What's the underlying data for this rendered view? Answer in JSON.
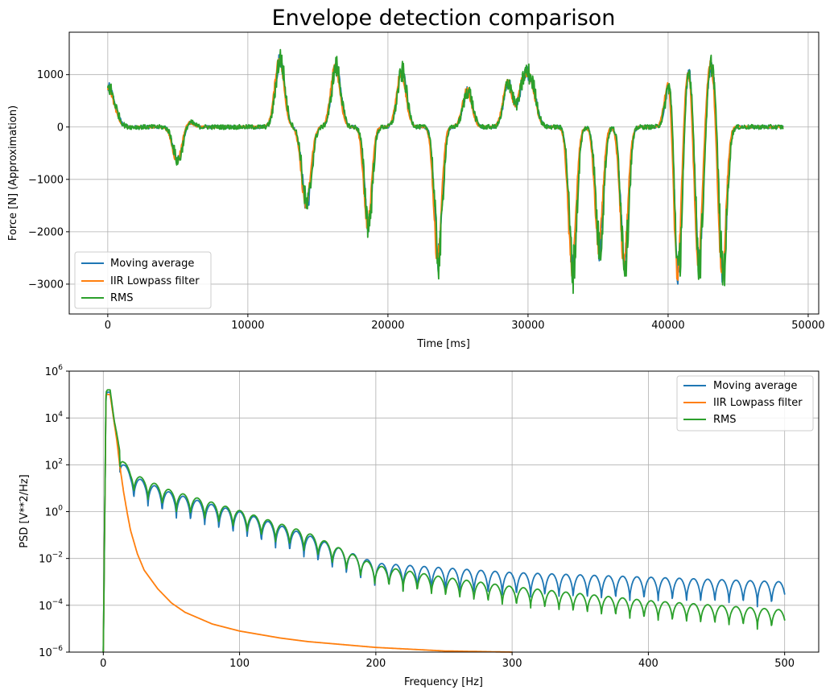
{
  "chart_data": [
    {
      "type": "line",
      "title": "Envelope detection comparison",
      "xlabel": "Time [ms]",
      "ylabel": "Force [N] (Approximation)",
      "xlim": [
        -2750,
        50750
      ],
      "ylim": [
        -3570,
        1810
      ],
      "xticks": [
        0,
        10000,
        20000,
        30000,
        40000,
        50000
      ],
      "xtick_labels": [
        "0",
        "10000",
        "20000",
        "30000",
        "40000",
        "50000"
      ],
      "yticks": [
        -3000,
        -2000,
        -1000,
        0,
        1000
      ],
      "ytick_labels": [
        "−3000",
        "−2000",
        "−1000",
        "0",
        "1000"
      ],
      "grid": true,
      "legend": "lower-left",
      "series": [
        {
          "name": "Moving average",
          "color": "#1f77b4"
        },
        {
          "name": "IIR Lowpass filter",
          "color": "#ff7f0e"
        },
        {
          "name": "RMS",
          "color": "#2ca02c"
        }
      ],
      "events": [
        {
          "t": 0,
          "amp": 650
        },
        {
          "t": 500,
          "amp": 250
        },
        {
          "t": 5000,
          "amp": -650
        },
        {
          "t": 5800,
          "amp": 100
        },
        {
          "t": 12300,
          "amp": 1300
        },
        {
          "t": 14200,
          "amp": -1500
        },
        {
          "t": 16300,
          "amp": 1150
        },
        {
          "t": 18600,
          "amp": -1850
        },
        {
          "t": 21000,
          "amp": 1050
        },
        {
          "t": 23600,
          "amp": -2500
        },
        {
          "t": 25700,
          "amp": 700
        },
        {
          "t": 28600,
          "amp": 850
        },
        {
          "t": 29700,
          "amp": 850
        },
        {
          "t": 30300,
          "amp": 700
        },
        {
          "t": 33200,
          "amp": -2700
        },
        {
          "t": 35100,
          "amp": -2300
        },
        {
          "t": 36900,
          "amp": -2550
        },
        {
          "t": 40200,
          "amp": 1100
        },
        {
          "t": 40700,
          "amp": -3200
        },
        {
          "t": 41500,
          "amp": 1200
        },
        {
          "t": 42200,
          "amp": -2750
        },
        {
          "t": 43100,
          "amp": 1250
        },
        {
          "t": 43900,
          "amp": -2850
        }
      ],
      "t_end": 48200
    },
    {
      "type": "line",
      "log_y": true,
      "xlabel": "Frequency [Hz]",
      "ylabel": "PSD [V**2/Hz]",
      "xlim": [
        -25,
        525
      ],
      "ylim": [
        1e-06,
        1000000.0
      ],
      "xticks": [
        0,
        100,
        200,
        300,
        400,
        500
      ],
      "xtick_labels": [
        "0",
        "100",
        "200",
        "300",
        "400",
        "500"
      ],
      "ytick_exponents": [
        -6,
        -4,
        -2,
        0,
        2,
        4,
        6
      ],
      "grid": true,
      "legend": "upper-right",
      "series": [
        {
          "name": "Moving average",
          "color": "#1f77b4",
          "x": [
            0,
            2,
            3,
            5,
            8,
            10,
            12,
            15,
            18,
            20,
            30,
            50,
            80,
            100,
            150,
            200,
            250,
            300,
            350,
            400,
            450,
            500
          ],
          "logy": [
            -6,
            5,
            5.1,
            5.1,
            3.8,
            3.2,
            2.5,
            2.1,
            1.8,
            1.6,
            1.3,
            0.8,
            0.3,
            0.0,
            -1.0,
            -2.2,
            -2.4,
            -2.6,
            -2.7,
            -2.8,
            -2.9,
            -3.0
          ],
          "dip_depth": 1.1
        },
        {
          "name": "IIR Lowpass filter",
          "color": "#ff7f0e",
          "x": [
            0,
            2,
            4,
            5,
            8,
            10,
            12,
            15,
            18,
            20,
            25,
            30,
            40,
            50,
            60,
            80,
            100,
            130,
            150,
            200,
            250,
            300
          ],
          "logy": [
            -6,
            5,
            5,
            5,
            3.8,
            3.0,
            2.0,
            0.8,
            -0.2,
            -0.8,
            -1.8,
            -2.5,
            -3.3,
            -3.9,
            -4.3,
            -4.8,
            -5.1,
            -5.4,
            -5.55,
            -5.8,
            -5.95,
            -6.0
          ]
        },
        {
          "name": "RMS",
          "color": "#2ca02c",
          "x": [
            0,
            2,
            3,
            5,
            8,
            10,
            12,
            15,
            18,
            20,
            30,
            50,
            80,
            100,
            150,
            200,
            250,
            300,
            350,
            400,
            450,
            500
          ],
          "logy": [
            -6,
            5.1,
            5.2,
            5.2,
            3.9,
            3.3,
            2.6,
            2.2,
            1.9,
            1.7,
            1.4,
            0.9,
            0.4,
            0.05,
            -0.9,
            -2.3,
            -2.8,
            -3.2,
            -3.5,
            -3.8,
            -4.0,
            -4.2
          ],
          "dip_depth": 0.9
        }
      ]
    }
  ]
}
